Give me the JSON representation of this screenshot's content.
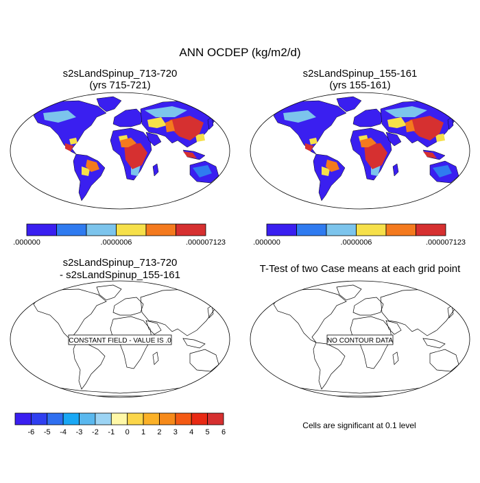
{
  "page": {
    "title": "ANN OCDEP (kg/m2/d)"
  },
  "panels": [
    {
      "title_line1": "s2sLandSpinup_713-720",
      "title_line2": "(yrs 715-721)"
    },
    {
      "title_line1": "s2sLandSpinup_155-161",
      "title_line2": "(yrs 155-161)"
    },
    {
      "title_line1": "s2sLandSpinup_713-720",
      "title_line2": "- s2sLandSpinup_155-161",
      "note": "CONSTANT FIELD - VALUE IS .0"
    },
    {
      "title_line1": "T-Test of two Case means at each grid point",
      "note": "NO CONTOUR DATA"
    }
  ],
  "colorbars": {
    "main": {
      "colors": [
        "#3a1ff0",
        "#2f7bf0",
        "#7cc4ec",
        "#f6e04a",
        "#f47a1e",
        "#d63030"
      ],
      "labels": [
        ".000000",
        ".0000006",
        ".000007123"
      ]
    },
    "diff": {
      "colors": [
        "#3a1ff0",
        "#2f3ff0",
        "#2f6ff0",
        "#1aa8f5",
        "#5ab8ee",
        "#9cd4f4",
        "#fff8a8",
        "#fbd64a",
        "#fbb128",
        "#f68a1a",
        "#f45a14",
        "#e82a14",
        "#d63030"
      ],
      "labels": [
        "-6",
        "-5",
        "-4",
        "-3",
        "-2",
        "-1",
        "0",
        "1",
        "2",
        "3",
        "4",
        "5",
        "6"
      ]
    }
  },
  "footer": {
    "significance": "Cells are significant at 0.1 level"
  },
  "chart_data": [
    {
      "type": "heatmap",
      "title": "s2sLandSpinup_713-720 (yrs 715-721)",
      "units": "kg/m2/d",
      "range": [
        0,
        7.123e-06
      ]
    },
    {
      "type": "heatmap",
      "title": "s2sLandSpinup_155-161 (yrs 155-161)",
      "units": "kg/m2/d",
      "range": [
        0,
        7.123e-06
      ]
    },
    {
      "type": "heatmap",
      "title": "s2sLandSpinup_713-720 - s2sLandSpinup_155-161",
      "value": 0
    },
    {
      "type": "heatmap",
      "title": "T-Test of two Case means at each grid point"
    }
  ]
}
